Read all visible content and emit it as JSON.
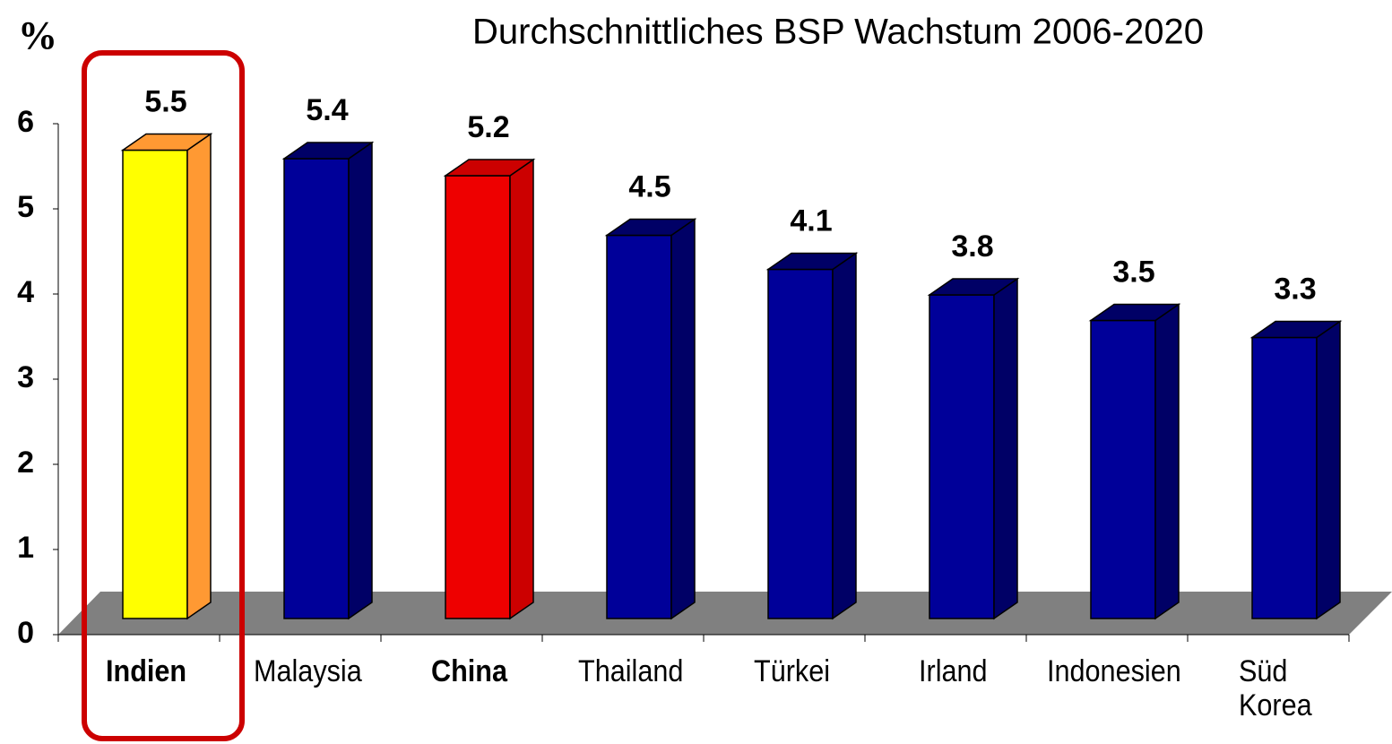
{
  "chart_data": {
    "type": "bar3d",
    "title": "Durchschnittliches BSP Wachstum 2006-2020",
    "y_label": "%",
    "categories": [
      "Indien",
      "Malaysia",
      "China",
      "Thailand",
      "Türkei",
      "Irland",
      "Indonesien",
      "Süd\nKorea"
    ],
    "values": [
      5.5,
      5.4,
      5.2,
      4.5,
      4.1,
      3.8,
      3.5,
      3.3
    ],
    "colors": [
      "#ffff00",
      "#000099",
      "#ee0000",
      "#000099",
      "#000099",
      "#000099",
      "#000099",
      "#000099"
    ],
    "side_colors": [
      "#ff9933",
      "#000066",
      "#cc0000",
      "#000066",
      "#000066",
      "#000066",
      "#000066",
      "#000066"
    ],
    "bold_categories": [
      true,
      false,
      true,
      false,
      false,
      false,
      false,
      false
    ],
    "highlight": 0,
    "ylim": [
      0,
      6
    ],
    "yticks": [
      0,
      1,
      2,
      3,
      4,
      5,
      6
    ],
    "grid": false
  }
}
